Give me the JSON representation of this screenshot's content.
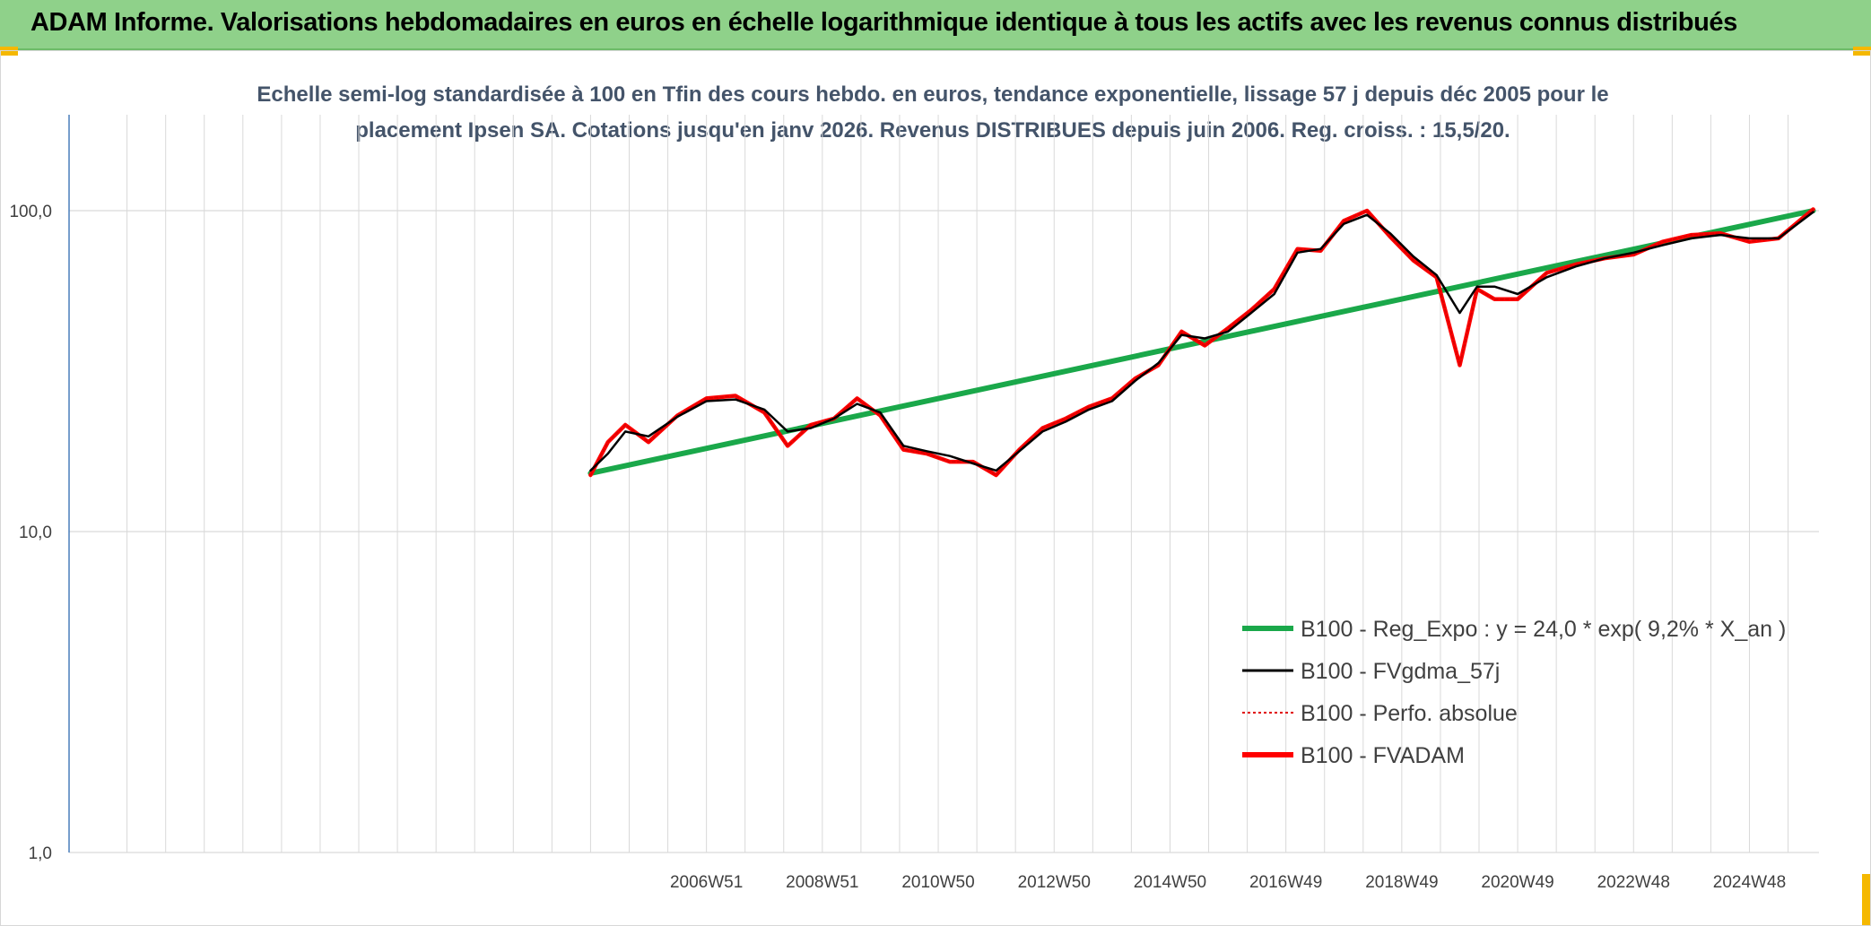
{
  "header": {
    "title": "ADAM Informe. Valorisations hebdomadaires en euros en échelle logarithmique identique à tous les actifs avec les revenus connus distribués"
  },
  "colors": {
    "header_bg": "#8fd18a",
    "corner_accent": "#f5b800",
    "regression": "#1aa84a",
    "smoothing": "#000000",
    "perfo": "#e00000",
    "fvadam": "#ff0000",
    "axis": "#4a7ebb",
    "grid": "#d9d9d9"
  },
  "chart_data": {
    "type": "line",
    "title_lines": [
      "Echelle semi-log standardisée à 100 en Tfin des cours hebdo. en euros, tendance exponentielle, lissage 57 j depuis déc 2005 pour le",
      "placement Ipsen SA. Cotations jusqu'en janv 2026. Revenus DISTRIBUES depuis juin 2006. Reg. croiss. : 15,5/20."
    ],
    "y_scale": "log",
    "ylim": [
      1,
      200
    ],
    "y_ticks": [
      {
        "value": 1,
        "label": "1,0"
      },
      {
        "value": 10,
        "label": "10,0"
      },
      {
        "value": 100,
        "label": "100,0"
      }
    ],
    "xlim": [
      1996.0,
      2026.2
    ],
    "x_ticks": [
      {
        "value": 2007.0,
        "label": "2006W51"
      },
      {
        "value": 2009.0,
        "label": "2008W51"
      },
      {
        "value": 2011.0,
        "label": "2010W50"
      },
      {
        "value": 2013.0,
        "label": "2012W50"
      },
      {
        "value": 2015.0,
        "label": "2014W50"
      },
      {
        "value": 2017.0,
        "label": "2016W49"
      },
      {
        "value": 2019.0,
        "label": "2018W49"
      },
      {
        "value": 2021.0,
        "label": "2020W49"
      },
      {
        "value": 2023.0,
        "label": "2022W48"
      },
      {
        "value": 2025.0,
        "label": "2024W48"
      }
    ],
    "grid": true,
    "legend_position": "bottom-right",
    "series": [
      {
        "name": "B100 - Reg_Expo : y = 24,0 * exp( 9,2% *  X_an )",
        "style": "regression",
        "x": [
          2005.0,
          2026.1
        ],
        "y": [
          15.2,
          100.0
        ]
      },
      {
        "name": "B100 - FVgdma_57j",
        "style": "smooth",
        "x": [
          2005.0,
          2005.3,
          2005.6,
          2006.0,
          2006.5,
          2007.0,
          2007.5,
          2008.0,
          2008.4,
          2008.8,
          2009.2,
          2009.6,
          2010.0,
          2010.4,
          2010.8,
          2011.2,
          2011.6,
          2012.0,
          2012.4,
          2012.8,
          2013.2,
          2013.6,
          2014.0,
          2014.4,
          2014.8,
          2015.2,
          2015.6,
          2016.0,
          2016.4,
          2016.8,
          2017.2,
          2017.6,
          2018.0,
          2018.4,
          2018.8,
          2019.2,
          2019.6,
          2020.0,
          2020.3,
          2020.6,
          2021.0,
          2021.5,
          2022.0,
          2022.5,
          2023.0,
          2023.5,
          2024.0,
          2024.5,
          2025.0,
          2025.5,
          2026.1
        ],
        "y": [
          15.5,
          17.5,
          20.5,
          19.8,
          22.8,
          25.5,
          25.8,
          24.0,
          20.5,
          21.0,
          22.5,
          25.0,
          23.5,
          18.5,
          17.8,
          17.2,
          16.3,
          15.5,
          17.8,
          20.5,
          22.0,
          24.0,
          25.5,
          29.5,
          33.5,
          41.0,
          40.0,
          42.0,
          48.0,
          55.0,
          74.0,
          76.0,
          91.0,
          97.0,
          85.0,
          72.0,
          63.0,
          48.0,
          58.0,
          58.0,
          55.0,
          62.0,
          67.0,
          71.0,
          74.0,
          78.0,
          82.0,
          84.0,
          82.0,
          82.0,
          99.0
        ]
      },
      {
        "name": "B100 - Perfo. absolue",
        "style": "dotted",
        "x": [
          2005.0,
          2005.3,
          2005.6,
          2006.0,
          2006.5,
          2007.0,
          2007.5,
          2008.0,
          2008.4,
          2008.8,
          2009.2,
          2009.6,
          2010.0,
          2010.4,
          2010.8,
          2011.2,
          2011.6,
          2012.0,
          2012.4,
          2012.8,
          2013.2,
          2013.6,
          2014.0,
          2014.4,
          2014.8,
          2015.2,
          2015.6,
          2016.0,
          2016.4,
          2016.8,
          2017.2,
          2017.6,
          2018.0,
          2018.4,
          2018.8,
          2019.2,
          2019.6,
          2020.0,
          2020.3,
          2020.6,
          2021.0,
          2021.5,
          2022.0,
          2022.5,
          2023.0,
          2023.5,
          2024.0,
          2024.5,
          2025.0,
          2025.5,
          2026.1
        ],
        "y": [
          15.0,
          19.0,
          21.5,
          19.0,
          23.0,
          26.0,
          26.5,
          23.5,
          18.5,
          21.5,
          22.5,
          26.0,
          23.0,
          18.0,
          17.5,
          16.5,
          16.5,
          15.0,
          18.0,
          21.0,
          22.5,
          24.5,
          26.0,
          30.0,
          33.0,
          42.0,
          38.0,
          43.0,
          49.0,
          57.0,
          76.0,
          75.0,
          93.0,
          100.0,
          83.0,
          70.0,
          62.0,
          33.0,
          57.0,
          53.0,
          53.0,
          64.0,
          68.0,
          71.0,
          73.0,
          80.0,
          84.0,
          85.0,
          80.0,
          82.0,
          101.0
        ]
      },
      {
        "name": "B100 - FVADAM",
        "style": "thick",
        "x": [
          2005.0,
          2005.3,
          2005.6,
          2006.0,
          2006.5,
          2007.0,
          2007.5,
          2008.0,
          2008.4,
          2008.8,
          2009.2,
          2009.6,
          2010.0,
          2010.4,
          2010.8,
          2011.2,
          2011.6,
          2012.0,
          2012.4,
          2012.8,
          2013.2,
          2013.6,
          2014.0,
          2014.4,
          2014.8,
          2015.2,
          2015.6,
          2016.0,
          2016.4,
          2016.8,
          2017.2,
          2017.6,
          2018.0,
          2018.4,
          2018.8,
          2019.2,
          2019.6,
          2020.0,
          2020.3,
          2020.6,
          2021.0,
          2021.5,
          2022.0,
          2022.5,
          2023.0,
          2023.5,
          2024.0,
          2024.5,
          2025.0,
          2025.5,
          2026.1
        ],
        "y": [
          15.0,
          19.0,
          21.5,
          19.0,
          23.0,
          26.0,
          26.5,
          23.5,
          18.5,
          21.5,
          22.5,
          26.0,
          23.0,
          18.0,
          17.5,
          16.5,
          16.5,
          15.0,
          18.0,
          21.0,
          22.5,
          24.5,
          26.0,
          30.0,
          33.0,
          42.0,
          38.0,
          43.0,
          49.0,
          57.0,
          76.0,
          75.0,
          93.0,
          100.0,
          83.0,
          70.0,
          62.0,
          33.0,
          57.0,
          53.0,
          53.0,
          64.0,
          68.0,
          71.0,
          73.0,
          80.0,
          84.0,
          85.0,
          80.0,
          82.0,
          101.0
        ]
      }
    ]
  }
}
